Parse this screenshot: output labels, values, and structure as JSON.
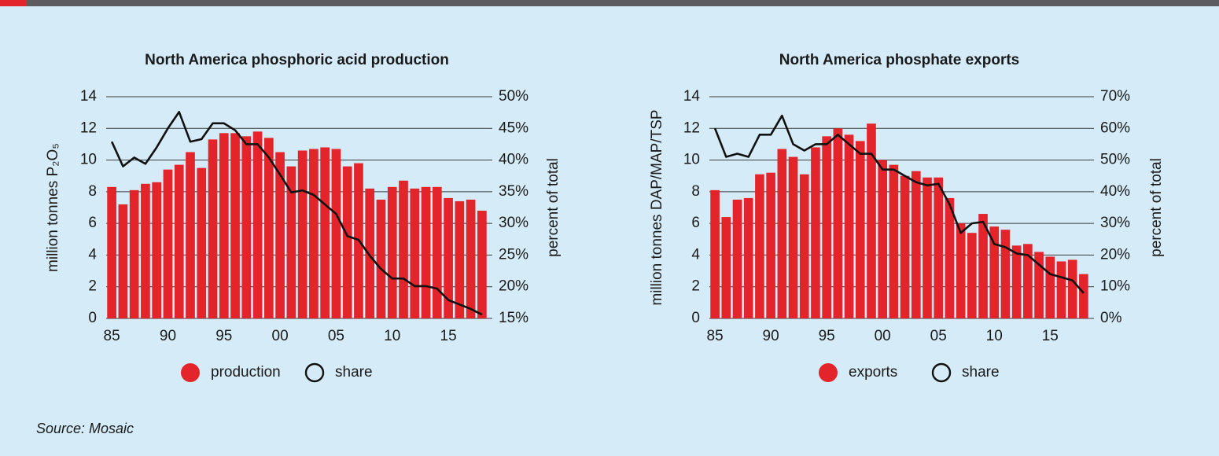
{
  "chart_data": [
    {
      "type": "bar",
      "title": "North America phosphoric acid production",
      "y_label": "million tonnes P₂O₅",
      "y2_label": "percent of total",
      "categories": [
        "85",
        null,
        null,
        null,
        null,
        "90",
        null,
        null,
        null,
        null,
        "95",
        null,
        null,
        null,
        null,
        "00",
        null,
        null,
        null,
        null,
        "05",
        null,
        null,
        null,
        null,
        "10",
        null,
        null,
        null,
        null,
        "15",
        null,
        null,
        null
      ],
      "series": [
        {
          "name": "production",
          "color": "#e3242b",
          "values": [
            8.3,
            7.2,
            8.1,
            8.5,
            8.6,
            9.4,
            9.7,
            10.5,
            9.5,
            11.3,
            11.7,
            11.7,
            11.5,
            11.8,
            11.4,
            10.5,
            9.6,
            10.6,
            10.7,
            10.8,
            10.7,
            9.6,
            9.8,
            8.2,
            7.5,
            8.3,
            8.7,
            8.2,
            8.3,
            8.3,
            7.6,
            7.4,
            7.5,
            6.8
          ]
        },
        {
          "name": "share",
          "color": "#111111",
          "type": "line",
          "axis": "y2",
          "values": [
            42.9,
            39,
            40.4,
            39.4,
            42,
            45,
            47.6,
            42.9,
            43.3,
            45.8,
            45.8,
            44.7,
            42.5,
            42.5,
            40.4,
            37.7,
            34.9,
            35.2,
            34.5,
            33,
            31.5,
            28,
            27.4,
            24.9,
            22.8,
            21.3,
            21.3,
            20.1,
            20.1,
            19.7,
            17.9,
            17.2,
            16.5,
            15.6
          ]
        }
      ],
      "ylim": [
        0,
        14
      ],
      "yticks": [
        0,
        2,
        4,
        6,
        8,
        10,
        12,
        14
      ],
      "y2lim": [
        15,
        50
      ],
      "y2ticks": [
        {
          "value": 15,
          "label": "15%"
        },
        {
          "value": 20,
          "label": "20%"
        },
        {
          "value": 25,
          "label": "25%"
        },
        {
          "value": 30,
          "label": "30%"
        },
        {
          "value": 35,
          "label": "35%"
        },
        {
          "value": 40,
          "label": "40%"
        },
        {
          "value": 45,
          "label": "45%"
        },
        {
          "value": 50,
          "label": "50%"
        }
      ],
      "grid": true
    },
    {
      "type": "bar",
      "title": "North America phosphate exports",
      "y_label": "million tonnes DAP/MAP/TSP",
      "y2_label": "percent of total",
      "categories": [
        "85",
        null,
        null,
        null,
        null,
        "90",
        null,
        null,
        null,
        null,
        "95",
        null,
        null,
        null,
        null,
        "00",
        null,
        null,
        null,
        null,
        "05",
        null,
        null,
        null,
        null,
        "10",
        null,
        null,
        null,
        null,
        "15",
        null,
        null,
        null
      ],
      "series": [
        {
          "name": "exports",
          "color": "#e3242b",
          "values": [
            8.1,
            6.4,
            7.5,
            7.6,
            9.1,
            9.2,
            10.7,
            10.2,
            9.1,
            10.8,
            11.5,
            12.0,
            11.6,
            11.2,
            12.3,
            10.0,
            9.7,
            9.0,
            9.3,
            8.9,
            8.9,
            7.6,
            6.0,
            5.4,
            6.6,
            5.8,
            5.6,
            4.6,
            4.7,
            4.2,
            3.9,
            3.6,
            3.7,
            2.8
          ]
        },
        {
          "name": "share",
          "color": "#111111",
          "type": "line",
          "axis": "y2",
          "values": [
            60,
            51,
            52,
            51,
            58,
            58,
            64,
            55,
            53,
            55,
            55,
            58,
            55,
            52,
            52,
            47,
            47,
            45,
            43,
            42,
            42.5,
            36,
            27,
            30,
            30.5,
            23.5,
            22.5,
            20.5,
            20,
            17,
            14,
            13,
            12,
            8
          ]
        }
      ],
      "ylim": [
        0,
        14
      ],
      "yticks": [
        0,
        2,
        4,
        6,
        8,
        10,
        12,
        14
      ],
      "y2lim": [
        0,
        70
      ],
      "y2ticks": [
        {
          "value": 0,
          "label": "0%"
        },
        {
          "value": 10,
          "label": "10%"
        },
        {
          "value": 20,
          "label": "20%"
        },
        {
          "value": 30,
          "label": "30%"
        },
        {
          "value": 40,
          "label": "40%"
        },
        {
          "value": 50,
          "label": "50%"
        },
        {
          "value": 60,
          "label": "60%"
        },
        {
          "value": 70,
          "label": "70%"
        }
      ],
      "grid": true
    }
  ],
  "source": "Source: Mosaic"
}
